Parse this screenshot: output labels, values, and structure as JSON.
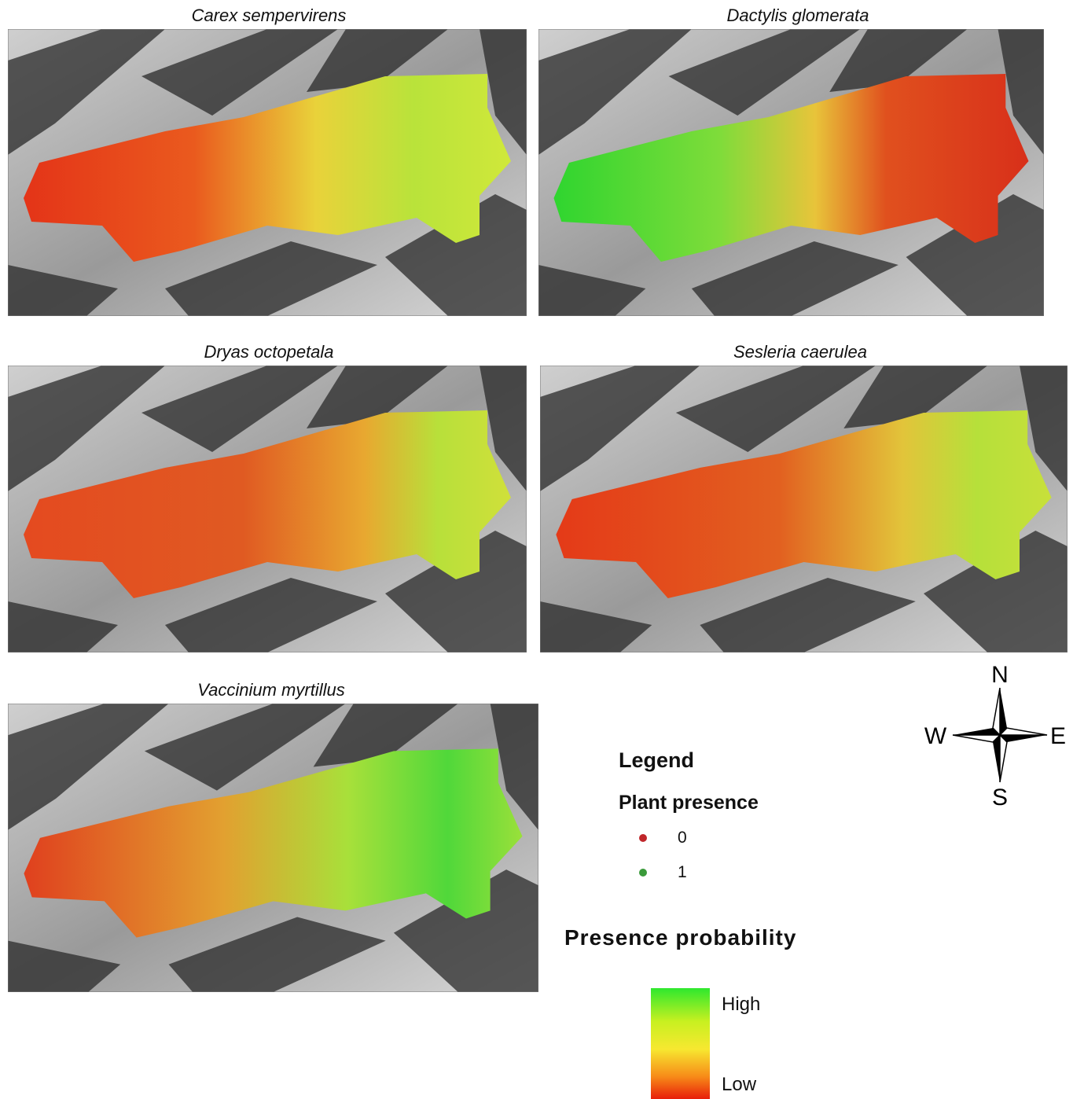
{
  "panels": [
    {
      "title": "Carex sempervirens"
    },
    {
      "title": "Dactylis glomerata"
    },
    {
      "title": "Dryas octopetala"
    },
    {
      "title": "Sesleria caerulea"
    },
    {
      "title": "Vaccinium myrtillus"
    }
  ],
  "legend": {
    "title": "Legend",
    "presence_title": "Plant presence",
    "presence_items": [
      "0",
      "1"
    ],
    "probability_title": "Presence probability",
    "high": "High",
    "low": "Low"
  },
  "compass": {
    "n": "N",
    "s": "S",
    "w": "W",
    "e": "E"
  }
}
